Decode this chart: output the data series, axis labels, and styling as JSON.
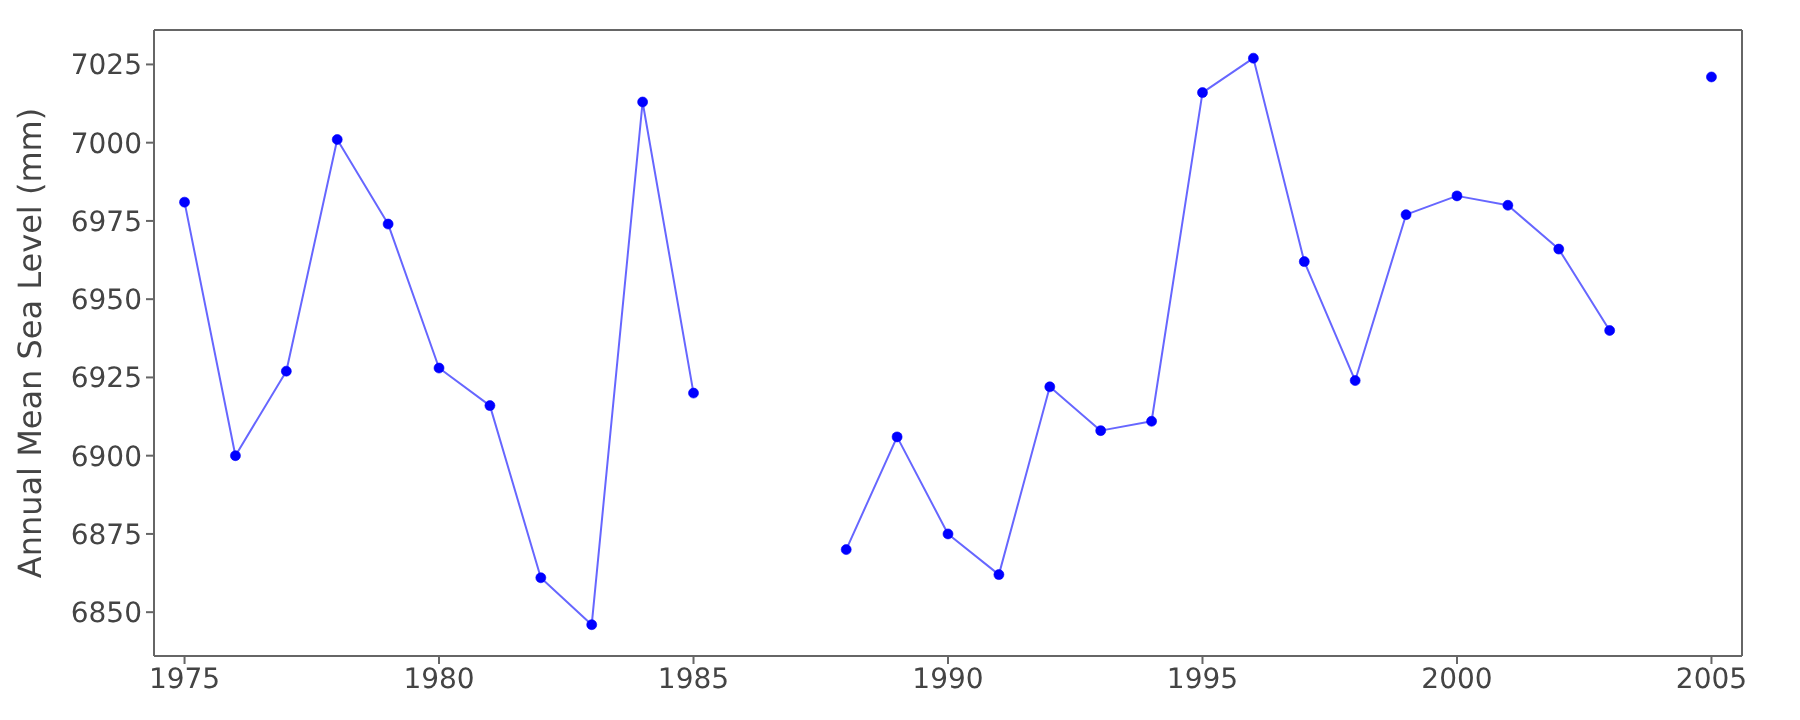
{
  "chart_data": {
    "type": "line",
    "ylabel": "Annual Mean Sea Level (mm)",
    "x": [
      1975,
      1976,
      1977,
      1978,
      1979,
      1980,
      1981,
      1982,
      1983,
      1984,
      1985,
      1986,
      1987,
      1988,
      1989,
      1990,
      1991,
      1992,
      1993,
      1994,
      1995,
      1996,
      1997,
      1998,
      1999,
      2000,
      2001,
      2002,
      2003,
      2004,
      2005
    ],
    "series": [
      {
        "color": "#0000ff",
        "values": [
          6981,
          6900,
          6927,
          7001,
          6974,
          6928,
          6916,
          6861,
          6846,
          7013,
          6920,
          null,
          null,
          6870,
          6906,
          6875,
          6862,
          6922,
          6908,
          6911,
          7016,
          7027,
          6962,
          6924,
          6977,
          6983,
          6980,
          6966,
          6940,
          null,
          7021
        ]
      }
    ],
    "xlim": [
      1974.4,
      2005.6
    ],
    "xticks": [
      1975,
      1980,
      1985,
      1990,
      1995,
      2000,
      2005
    ],
    "ylim": [
      6836,
      7036
    ],
    "yticks": [
      6850,
      6875,
      6900,
      6925,
      6950,
      6975,
      7000,
      7025
    ],
    "grid": false,
    "legend": false,
    "marker": "circle",
    "line_style": "solid"
  }
}
